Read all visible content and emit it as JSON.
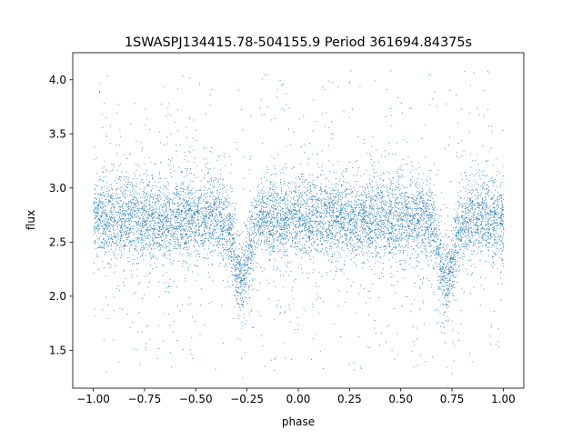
{
  "chart_data": {
    "type": "scatter",
    "title": "1SWASPJ134415.78-504155.9 Period 361694.84375s",
    "xlabel": "phase",
    "ylabel": "flux",
    "xlim": [
      -1.1,
      1.1
    ],
    "ylim": [
      1.15,
      4.25
    ],
    "xticks": [
      -1.0,
      -0.75,
      -0.5,
      -0.25,
      0.0,
      0.25,
      0.5,
      0.75,
      1.0
    ],
    "xtick_labels": [
      "−1.00",
      "−0.75",
      "−0.50",
      "−0.25",
      "0.00",
      "0.25",
      "0.50",
      "0.75",
      "1.00"
    ],
    "yticks": [
      1.5,
      2.0,
      2.5,
      3.0,
      3.5,
      4.0
    ],
    "ytick_labels": [
      "1.5",
      "2.0",
      "2.5",
      "3.0",
      "3.5",
      "4.0"
    ],
    "grid": false,
    "marker_color": "#1f77b4",
    "series": [
      {
        "x_range": [
          -1.0,
          1.0
        ],
        "baseline_flux": 2.72,
        "scatter_sd": 0.18,
        "eclipses": [
          {
            "phase": -0.28,
            "min_flux": 2.15,
            "half_width": 0.05
          },
          {
            "phase": 0.72,
            "min_flux": 2.15,
            "half_width": 0.05
          }
        ],
        "outlier_range": [
          1.3,
          4.1
        ]
      }
    ]
  }
}
